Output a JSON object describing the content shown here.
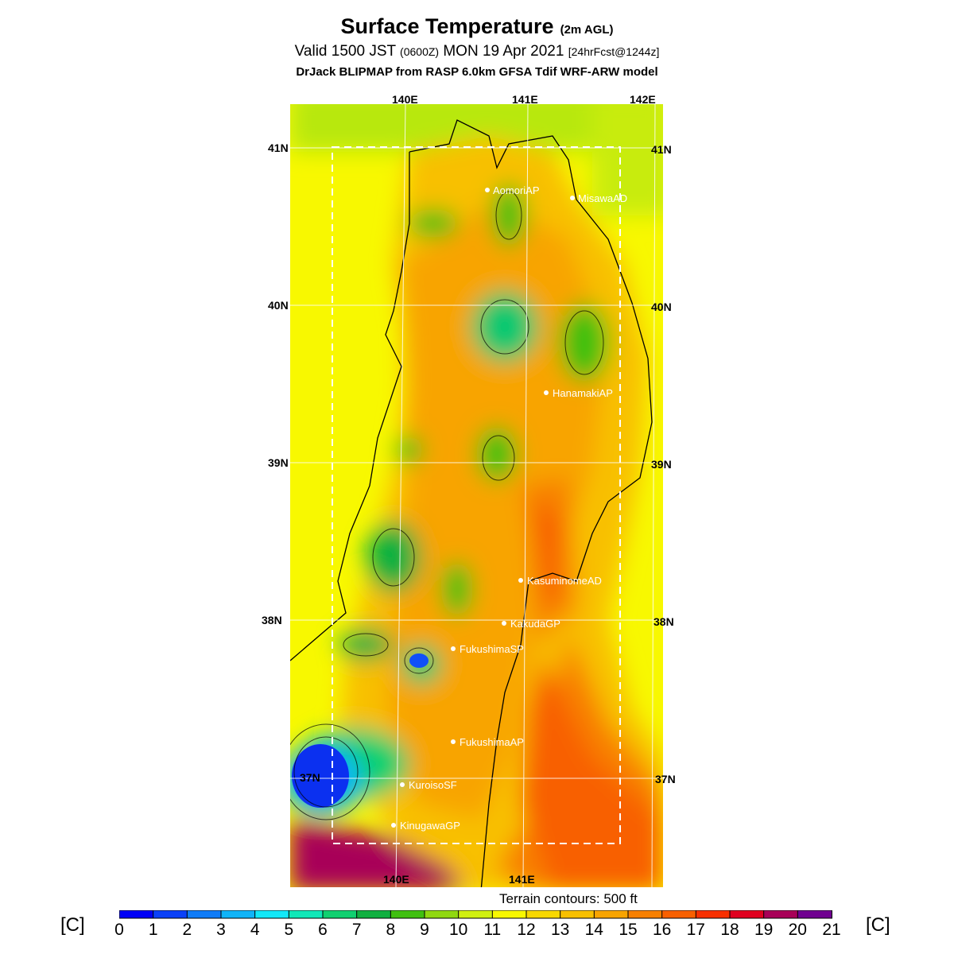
{
  "header": {
    "title": "Surface Temperature",
    "title_sub": "(2m AGL)",
    "valid_prefix": "Valid 1500 JST",
    "valid_zulu": "(0600Z)",
    "valid_date": "MON 19 Apr 2021",
    "forecast": "[24hrFcst@1244z]",
    "model_line": "DrJack BLIPMAP from RASP 6.0km GFSA Tdif WRF-ARW model"
  },
  "map": {
    "longitude_labels_top": [
      "140E",
      "141E",
      "142E"
    ],
    "longitude_labels_bottom": [
      "140E",
      "141E"
    ],
    "latitude_labels_left": [
      "41N",
      "40N",
      "39N",
      "38N",
      "37N"
    ],
    "latitude_labels_right": [
      "41N",
      "40N",
      "39N",
      "38N",
      "37N"
    ],
    "stations": [
      {
        "name": "AomoriAP"
      },
      {
        "name": "MisawaAD"
      },
      {
        "name": "HanamakiAP"
      },
      {
        "name": "KasuminomeAD"
      },
      {
        "name": "KakudaGP"
      },
      {
        "name": "FukushimaSP"
      },
      {
        "name": "FukushimaAP"
      },
      {
        "name": "KuroisoSF"
      },
      {
        "name": "KinugawaGP"
      }
    ],
    "terrain_note": "Terrain contours: 500 ft"
  },
  "legend": {
    "unit_label": "[C]",
    "ticks": [
      "0",
      "1",
      "2",
      "3",
      "4",
      "5",
      "6",
      "7",
      "8",
      "9",
      "10",
      "11",
      "12",
      "13",
      "14",
      "15",
      "16",
      "17",
      "18",
      "19",
      "20",
      "21"
    ],
    "colors": [
      "#0000f6",
      "#0b41f8",
      "#0f7cf8",
      "#10b4f8",
      "#12e8f8",
      "#10e8b8",
      "#10d070",
      "#10b040",
      "#40c010",
      "#90d810",
      "#d0f010",
      "#f8f800",
      "#f8d800",
      "#f8c000",
      "#f8a400",
      "#f88000",
      "#f86000",
      "#f83000",
      "#e00020",
      "#a80058",
      "#700090"
    ]
  }
}
